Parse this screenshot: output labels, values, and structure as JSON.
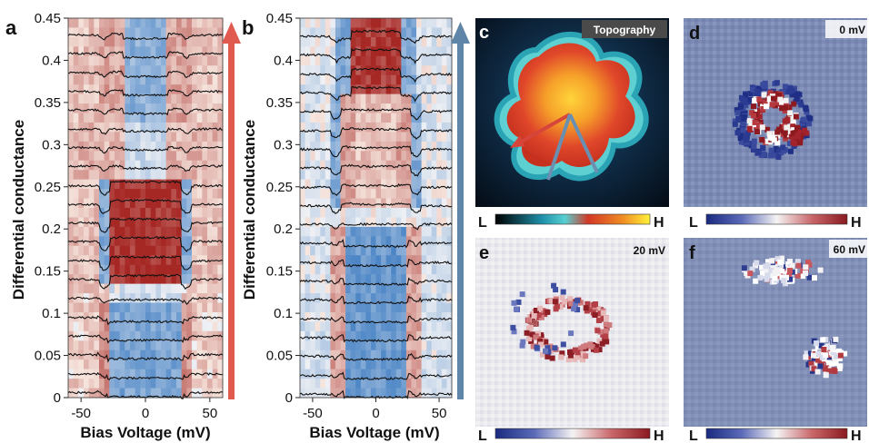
{
  "panels": {
    "a": {
      "letter": "a"
    },
    "b": {
      "letter": "b"
    },
    "c": {
      "letter": "c",
      "badge": "Topography"
    },
    "d": {
      "letter": "d",
      "badge": "0 mV"
    },
    "e": {
      "letter": "e",
      "badge": "20 mV"
    },
    "f": {
      "letter": "f",
      "badge": "60 mV"
    }
  },
  "colorbar": {
    "low": "L",
    "high": "H"
  },
  "colors": {
    "arrow_red": "#e05a50",
    "arrow_blue": "#5f86a8",
    "map_background": "#7e8cb3",
    "diverging_red": "#a5262c",
    "diverging_blue": "#26378a"
  },
  "chart_data": [
    {
      "type": "heatmap",
      "panel": "a",
      "xlabel": "Bias Voltage (mV)",
      "ylabel": "Differential conductance",
      "xlim": [
        -60,
        60
      ],
      "ylim": [
        0,
        0.45
      ],
      "x_ticks": [
        -50,
        0,
        50
      ],
      "y_ticks": [
        0,
        0.05,
        0.1,
        0.15,
        0.2,
        0.25,
        0.3,
        0.35,
        0.4,
        0.45
      ],
      "x_tick_labels": [
        "-50",
        "0",
        "50"
      ],
      "y_tick_labels": [
        "0",
        "0.05",
        "0.1",
        "0.15",
        "0.2",
        "0.25",
        "0.3",
        "0.35",
        "0.4",
        "0.45"
      ],
      "spectra_offsets": [
        0.005,
        0.027,
        0.05,
        0.072,
        0.094,
        0.117,
        0.139,
        0.161,
        0.184,
        0.206,
        0.228,
        0.25,
        0.273,
        0.295,
        0.317,
        0.34,
        0.362,
        0.384,
        0.407,
        0.429
      ],
      "grid": false
    },
    {
      "type": "heatmap",
      "panel": "b",
      "xlabel": "Bias Voltage (mV)",
      "ylabel": "Differential conductance",
      "xlim": [
        -60,
        60
      ],
      "ylim": [
        0,
        0.45
      ],
      "x_ticks": [
        -50,
        0,
        50
      ],
      "y_ticks": [
        0,
        0.05,
        0.1,
        0.15,
        0.2,
        0.25,
        0.3,
        0.35,
        0.4,
        0.45
      ],
      "x_tick_labels": [
        "-50",
        "0",
        "50"
      ],
      "y_tick_labels": [
        "0",
        "0.05",
        "0.1",
        "0.15",
        "0.2",
        "0.25",
        "0.3",
        "0.35",
        "0.4",
        "0.45"
      ],
      "spectra_offsets": [
        0.005,
        0.027,
        0.05,
        0.072,
        0.094,
        0.117,
        0.139,
        0.161,
        0.184,
        0.206,
        0.228,
        0.25,
        0.273,
        0.295,
        0.317,
        0.34,
        0.362,
        0.384,
        0.407,
        0.429
      ],
      "grid": false
    }
  ]
}
